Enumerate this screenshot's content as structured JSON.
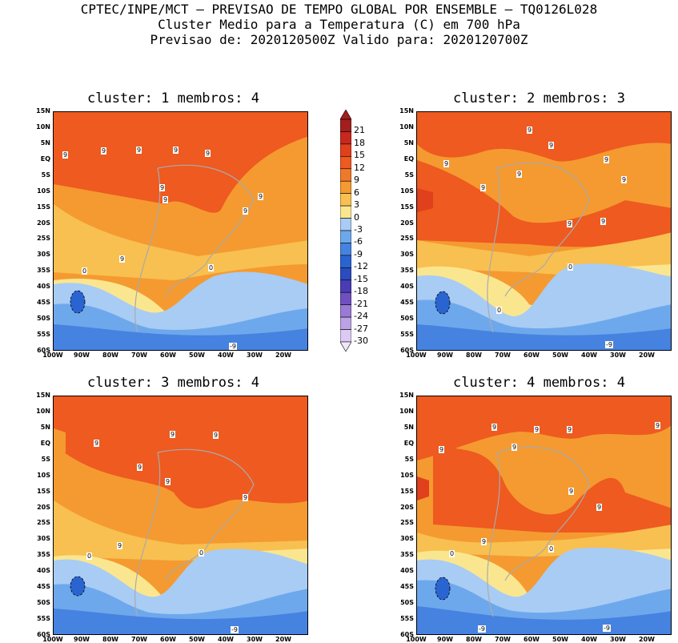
{
  "header": {
    "line1": "CPTEC/INPE/MCT – PREVISAO DE TEMPO GLOBAL POR ENSEMBLE – TQ0126L028",
    "line2": "Cluster Medio para a Temperatura (C) em 700 hPa",
    "line3": "Previsao de: 2020120500Z   Valido para: 2020120700Z"
  },
  "panels": [
    {
      "title": "cluster: 1  membros: 4"
    },
    {
      "title": "cluster: 2  membros: 3"
    },
    {
      "title": "cluster: 3  membros: 4"
    },
    {
      "title": "cluster: 4  membros: 4"
    }
  ],
  "axes": {
    "lat_labels": [
      "15N",
      "10N",
      "5N",
      "EQ",
      "5S",
      "10S",
      "15S",
      "20S",
      "25S",
      "30S",
      "35S",
      "40S",
      "45S",
      "50S",
      "55S",
      "60S"
    ],
    "lon_labels": [
      "100W",
      "90W",
      "80W",
      "70W",
      "60W",
      "50W",
      "40W",
      "30W",
      "20W"
    ]
  },
  "colorbar": {
    "labels": [
      "21",
      "18",
      "15",
      "12",
      "9",
      "6",
      "3",
      "0",
      "-3",
      "-6",
      "-9",
      "-12",
      "-15",
      "-18",
      "-21",
      "-24",
      "-27",
      "-30"
    ],
    "colors": [
      "#a31e1e",
      "#c8281e",
      "#e0401c",
      "#ee5a20",
      "#f0782a",
      "#f59a30",
      "#f8c050",
      "#fbe690",
      "#a8ccf4",
      "#6ea8ec",
      "#4682e0",
      "#2a64d0",
      "#2a4cbe",
      "#4a3cb4",
      "#7050c0",
      "#9a7ad4",
      "#baa2e4",
      "#dccaf2"
    ]
  },
  "contour_labels": {
    "panel1": [
      "9",
      "9",
      "9",
      "9",
      "9",
      "9",
      "9",
      "9",
      "9",
      "9",
      "0",
      "0",
      "-9"
    ],
    "panel2": [
      "9",
      "9",
      "9",
      "9",
      "9",
      "9",
      "9",
      "9",
      "9",
      "0",
      "0",
      "-9"
    ],
    "panel3": [
      "9",
      "9",
      "9",
      "9",
      "9",
      "9",
      "9",
      "0",
      "0",
      "-9"
    ],
    "panel4": [
      "9",
      "9",
      "9",
      "9",
      "9",
      "9",
      "9",
      "9",
      "9",
      "0",
      "0",
      "-9",
      "-9"
    ]
  }
}
